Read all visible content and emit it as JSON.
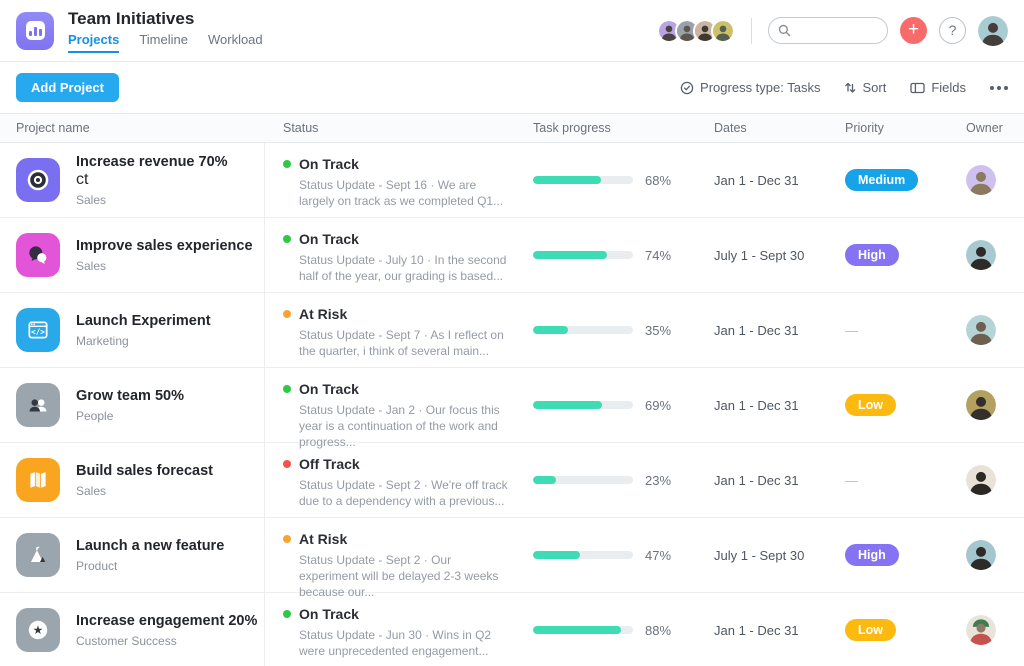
{
  "header": {
    "title": "Team Initiatives",
    "tabs": [
      {
        "label": "Projects",
        "active": true
      },
      {
        "label": "Timeline",
        "active": false
      },
      {
        "label": "Workload",
        "active": false
      }
    ],
    "search_placeholder": "",
    "accent_blue": "#1791e0",
    "plus_button_color": "#f96b6b"
  },
  "toolbar": {
    "add_project_label": "Add Project",
    "progress_type_label": "Progress type: Tasks",
    "sort_label": "Sort",
    "fields_label": "Fields",
    "button_blue": "#27a9ef"
  },
  "status_colors": {
    "on_track": "#2fc845",
    "at_risk": "#fba32c",
    "off_track": "#f4524a"
  },
  "progress_bar_color": "#3edcb5",
  "table": {
    "columns": [
      "Project name",
      "Status",
      "Task progress",
      "Dates",
      "Priority",
      "Owner"
    ],
    "rows": [
      {
        "name": "Increase revenue 70%",
        "team": "Sales",
        "icon": "target-icon",
        "icon_color": "#7a6ff0",
        "status": "On Track",
        "status_color": "#2fc845",
        "update": "Status Update - Sept 16 · We are largely on track as we completed Q1...",
        "progress_pct": 68,
        "progress_label": "68%",
        "dates": "Jan 1 - Dec 31",
        "priority": "Medium",
        "priority_color": "#16a3e8"
      },
      {
        "name": "Improve sales experience",
        "team": "Sales",
        "icon": "chat-bubbles-icon",
        "icon_color": "#e355d8",
        "status": "On Track",
        "status_color": "#2fc845",
        "update": "Status Update - July 10 · In the second half of the year, our grading is based...",
        "progress_pct": 74,
        "progress_label": "74%",
        "dates": "July 1 - Sept 30",
        "priority": "High",
        "priority_color": "#8573f3"
      },
      {
        "name": "Launch Experiment",
        "team": "Marketing",
        "icon": "code-window-icon",
        "icon_color": "#29a8ea",
        "status": "At Risk",
        "status_color": "#fba32c",
        "update": "Status Update - Sept 7 · As I reflect on the quarter, i think of several main...",
        "progress_pct": 35,
        "progress_label": "35%",
        "dates": "Jan 1 - Dec 31",
        "priority": "—",
        "priority_color": null
      },
      {
        "name": "Grow team 50%",
        "team": "People",
        "icon": "people-icon",
        "icon_color": "#9aa5ad",
        "status": "On Track",
        "status_color": "#2fc845",
        "update": "Status Update - Jan 2 · Our focus this year is a continuation of the work and progress...",
        "progress_pct": 69,
        "progress_label": "69%",
        "dates": "Jan 1 - Dec 31",
        "priority": "Low",
        "priority_color": "#fcba10"
      },
      {
        "name": "Build sales forecast",
        "team": "Sales",
        "icon": "map-icon",
        "icon_color": "#f9a51f",
        "status": "Off Track",
        "status_color": "#f4524a",
        "update": "Status Update - Sept 2 · We're off track due to a dependency with a previous...",
        "progress_pct": 23,
        "progress_label": "23%",
        "dates": "Jan 1 - Dec 31",
        "priority": "—",
        "priority_color": null
      },
      {
        "name": "Launch a new feature",
        "team": "Product",
        "icon": "mountain-flag-icon",
        "icon_color": "#9aa5ad",
        "status": "At Risk",
        "status_color": "#fba32c",
        "update": "Status Update - Sept 2 · Our experiment will be delayed 2-3 weeks because our...",
        "progress_pct": 47,
        "progress_label": "47%",
        "dates": "July 1 - Sept 30",
        "priority": "High",
        "priority_color": "#8573f3"
      },
      {
        "name": "Increase engagement 20%",
        "team": "Customer Success",
        "icon": "star-circle-icon",
        "icon_color": "#9aa5ad",
        "status": "On Track",
        "status_color": "#2fc845",
        "update": "Status Update - Jun 30 · Wins in Q2 were unprecedented engagement...",
        "progress_pct": 88,
        "progress_label": "88%",
        "dates": "Jan 1 - Dec 31",
        "priority": "Low",
        "priority_color": "#fcba10"
      }
    ]
  }
}
